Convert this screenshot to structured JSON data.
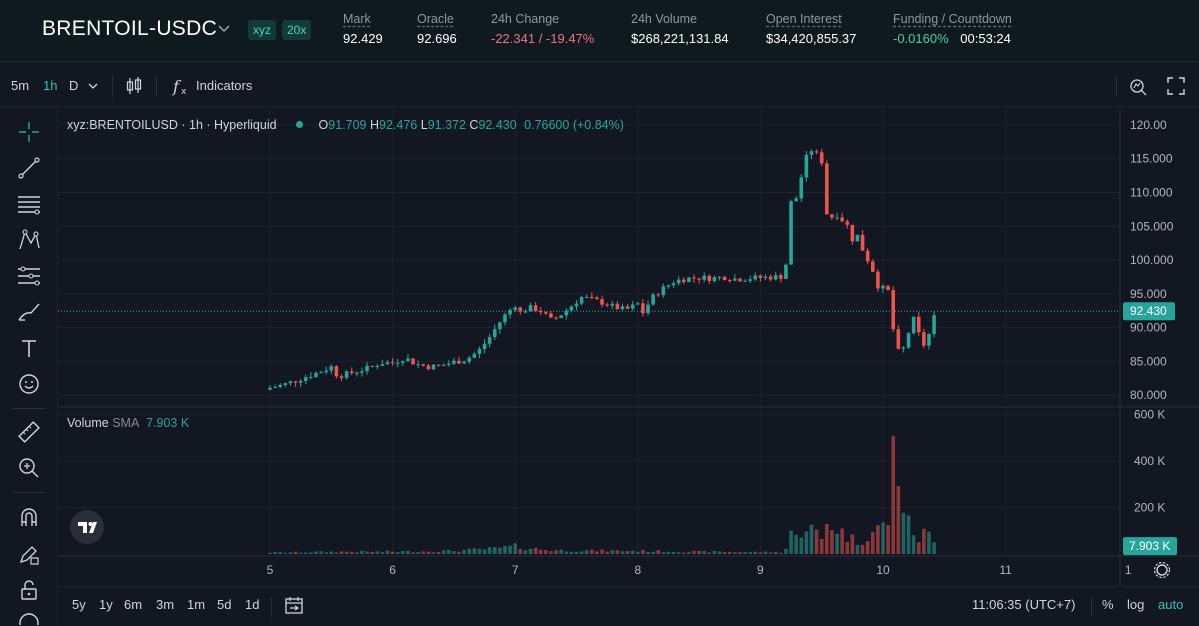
{
  "market": {
    "pair": "BRENTOIL-USDC",
    "badge_dex": "xyz",
    "badge_leverage": "20x",
    "stats": [
      {
        "label": "Mark",
        "value": "92.429",
        "dotted": true
      },
      {
        "label": "Oracle",
        "value": "92.696",
        "dotted": true
      },
      {
        "label": "24h Change",
        "value": "-22.341 / -19.47%",
        "dotted": false
      },
      {
        "label": "24h Volume",
        "value": "$268,221,131.84",
        "dotted": false
      },
      {
        "label": "Open Interest",
        "value": "$34,420,855.37",
        "dotted": true
      },
      {
        "label": "Funding / Countdown",
        "value": "-0.0160%",
        "value2": "00:53:24",
        "dotted": true
      }
    ]
  },
  "toolbar": {
    "intervals": [
      "5m",
      "1h",
      "D"
    ],
    "active_interval": "1h",
    "indicators_label": "Indicators",
    "icons": [
      "chevron-down-icon",
      "candles-icon",
      "function-icon",
      "screenshot-icon",
      "fullscreen-icon"
    ]
  },
  "left_tools": [
    "crosshair-icon",
    "trendline-icon",
    "fib-icon",
    "pattern-icon",
    "prediction-icon",
    "brush-icon",
    "text-icon",
    "emoji-icon",
    "ruler-icon",
    "zoom-icon",
    "magnet-icon",
    "lock-drawing-icon",
    "lock-icon",
    "trash-icon"
  ],
  "legend": {
    "symbol": "xyz:BRENTOILUSD · 1h · Hyperliquid",
    "o_label": "O",
    "o": "91.709",
    "h_label": "H",
    "h": "92.476",
    "l_label": "L",
    "l": "91.372",
    "c_label": "C",
    "c": "92.430",
    "change": "0.76600 (+0.84%)"
  },
  "volume_legend": {
    "label": "Volume",
    "sma_label": "SMA",
    "sma_value": "7.903 K"
  },
  "chart_data": {
    "type": "candlestick",
    "price_ticks": [
      "120.00",
      "115.000",
      "110.000",
      "105.000",
      "100.000",
      "95.000",
      "90.000",
      "85.000",
      "80.000"
    ],
    "price_tick_values": [
      120,
      115,
      110,
      105,
      100,
      95,
      90,
      85,
      80
    ],
    "price_range": [
      78.7,
      122.5
    ],
    "last_price_label": "92.430",
    "last_price": 92.43,
    "volume_ticks": [
      "600 K",
      "400 K",
      "200 K"
    ],
    "volume_tick_values": [
      600,
      400,
      200
    ],
    "volume_range": [
      0,
      620
    ],
    "volume_sma_label": "7.903 K",
    "x_ticks": [
      "5",
      "6",
      "7",
      "8",
      "9",
      "10",
      "11",
      "1"
    ],
    "x_tick_positions": [
      0,
      1,
      2,
      3,
      4,
      5,
      6,
      7
    ],
    "series": [
      {
        "name": "price",
        "close_path": [
          [
            0.0,
            81.1
          ],
          [
            0.1,
            81.5
          ],
          [
            0.2,
            82.1
          ],
          [
            0.3,
            82.8
          ],
          [
            0.4,
            83.4
          ],
          [
            0.5,
            84.2
          ],
          [
            0.55,
            82.9
          ],
          [
            0.6,
            83.0
          ],
          [
            0.7,
            83.5
          ],
          [
            0.8,
            84.0
          ],
          [
            0.9,
            84.8
          ],
          [
            1.0,
            84.8
          ],
          [
            1.1,
            85.6
          ],
          [
            1.15,
            85.0
          ],
          [
            1.2,
            84.6
          ],
          [
            1.3,
            84.2
          ],
          [
            1.4,
            84.4
          ],
          [
            1.5,
            84.9
          ],
          [
            1.6,
            85.3
          ],
          [
            1.7,
            86.5
          ],
          [
            1.8,
            88.8
          ],
          [
            1.85,
            90.2
          ],
          [
            1.9,
            91.5
          ],
          [
            2.0,
            93.4
          ],
          [
            2.05,
            92.0
          ],
          [
            2.1,
            93.0
          ],
          [
            2.2,
            92.6
          ],
          [
            2.25,
            91.8
          ],
          [
            2.3,
            91.0
          ],
          [
            2.4,
            92.3
          ],
          [
            2.5,
            93.9
          ],
          [
            2.55,
            94.6
          ],
          [
            2.6,
            94.2
          ],
          [
            2.7,
            93.8
          ],
          [
            2.8,
            93.1
          ],
          [
            2.9,
            92.6
          ],
          [
            3.0,
            93.5
          ],
          [
            3.05,
            92.0
          ],
          [
            3.1,
            94.2
          ],
          [
            3.2,
            95.7
          ],
          [
            3.3,
            96.9
          ],
          [
            3.4,
            97.3
          ],
          [
            3.5,
            97.4
          ],
          [
            3.6,
            97.3
          ],
          [
            3.7,
            97.5
          ],
          [
            3.8,
            97.2
          ],
          [
            3.9,
            97.3
          ],
          [
            4.0,
            97.4
          ],
          [
            4.1,
            97.5
          ],
          [
            4.2,
            97.6
          ],
          [
            4.25,
            108.5
          ],
          [
            4.3,
            109.3
          ],
          [
            4.35,
            113.8
          ],
          [
            4.4,
            116.5
          ],
          [
            4.45,
            115.8
          ],
          [
            4.5,
            114.6
          ],
          [
            4.52,
            112.9
          ],
          [
            4.55,
            104.6
          ],
          [
            4.6,
            107.3
          ],
          [
            4.65,
            106.2
          ],
          [
            4.7,
            105.5
          ],
          [
            4.75,
            103.1
          ],
          [
            4.8,
            103.7
          ],
          [
            4.85,
            100.5
          ],
          [
            4.9,
            99.6
          ],
          [
            4.95,
            96.3
          ],
          [
            5.0,
            95.8
          ],
          [
            5.05,
            95.3
          ],
          [
            5.1,
            87.0
          ],
          [
            5.15,
            85.9
          ],
          [
            5.2,
            88.9
          ],
          [
            5.25,
            91.2
          ],
          [
            5.3,
            88.6
          ],
          [
            5.35,
            86.9
          ],
          [
            5.4,
            91.1
          ],
          [
            5.45,
            92.43
          ]
        ]
      },
      {
        "name": "volume",
        "values_note": "per-candle volume in K",
        "path": [
          [
            0.0,
            6
          ],
          [
            0.3,
            8
          ],
          [
            0.6,
            10
          ],
          [
            0.9,
            10
          ],
          [
            1.2,
            11
          ],
          [
            1.5,
            14
          ],
          [
            1.8,
            22
          ],
          [
            2.0,
            33
          ],
          [
            2.1,
            25
          ],
          [
            2.3,
            16
          ],
          [
            2.6,
            14
          ],
          [
            2.9,
            14
          ],
          [
            3.2,
            12
          ],
          [
            3.5,
            10
          ],
          [
            3.8,
            9
          ],
          [
            4.1,
            8
          ],
          [
            4.2,
            8
          ],
          [
            4.25,
            100
          ],
          [
            4.3,
            60
          ],
          [
            4.35,
            130
          ],
          [
            4.4,
            120
          ],
          [
            4.5,
            60
          ],
          [
            4.55,
            150
          ],
          [
            4.6,
            120
          ],
          [
            4.7,
            80
          ],
          [
            4.8,
            50
          ],
          [
            4.9,
            90
          ],
          [
            5.0,
            120
          ],
          [
            5.05,
            150
          ],
          [
            5.1,
            550
          ],
          [
            5.15,
            240
          ],
          [
            5.2,
            130
          ],
          [
            5.3,
            60
          ],
          [
            5.35,
            100
          ],
          [
            5.45,
            20
          ]
        ]
      }
    ]
  },
  "bottom_bar": {
    "ranges": [
      "5y",
      "1y",
      "6m",
      "3m",
      "1m",
      "5d",
      "1d"
    ],
    "time": "11:06:35 (UTC+7)",
    "percent_label": "%",
    "log_label": "log",
    "auto_label": "auto"
  },
  "colors": {
    "up": "#26a69a",
    "down": "#ef5350",
    "accent": "#2ec4b6",
    "background": "#131722",
    "header_bg": "#0f1a1f"
  }
}
